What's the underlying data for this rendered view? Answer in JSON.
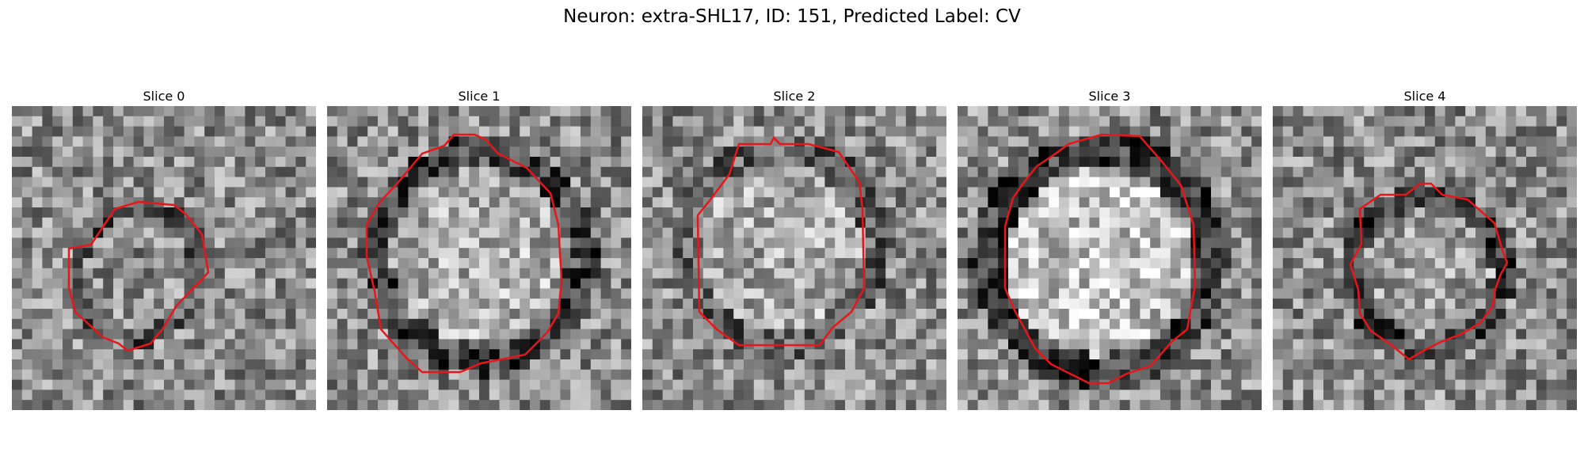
{
  "title": "Neuron: extra-SHL17, ID: 151, Predicted Label: CV",
  "colors": {
    "contour": "#e8161b",
    "background": "#ffffff"
  },
  "panels": [
    {
      "label": "Slice 0",
      "seed": 11,
      "center_brightness": 0.55,
      "ring_darkness": 0.35
    },
    {
      "label": "Slice 1",
      "seed": 23,
      "center_brightness": 0.68,
      "ring_darkness": 0.45
    },
    {
      "label": "Slice 2",
      "seed": 37,
      "center_brightness": 0.66,
      "ring_darkness": 0.25
    },
    {
      "label": "Slice 3",
      "seed": 41,
      "center_brightness": 0.75,
      "ring_darkness": 0.55
    },
    {
      "label": "Slice 4",
      "seed": 59,
      "center_brightness": 0.62,
      "ring_darkness": 0.5
    }
  ]
}
